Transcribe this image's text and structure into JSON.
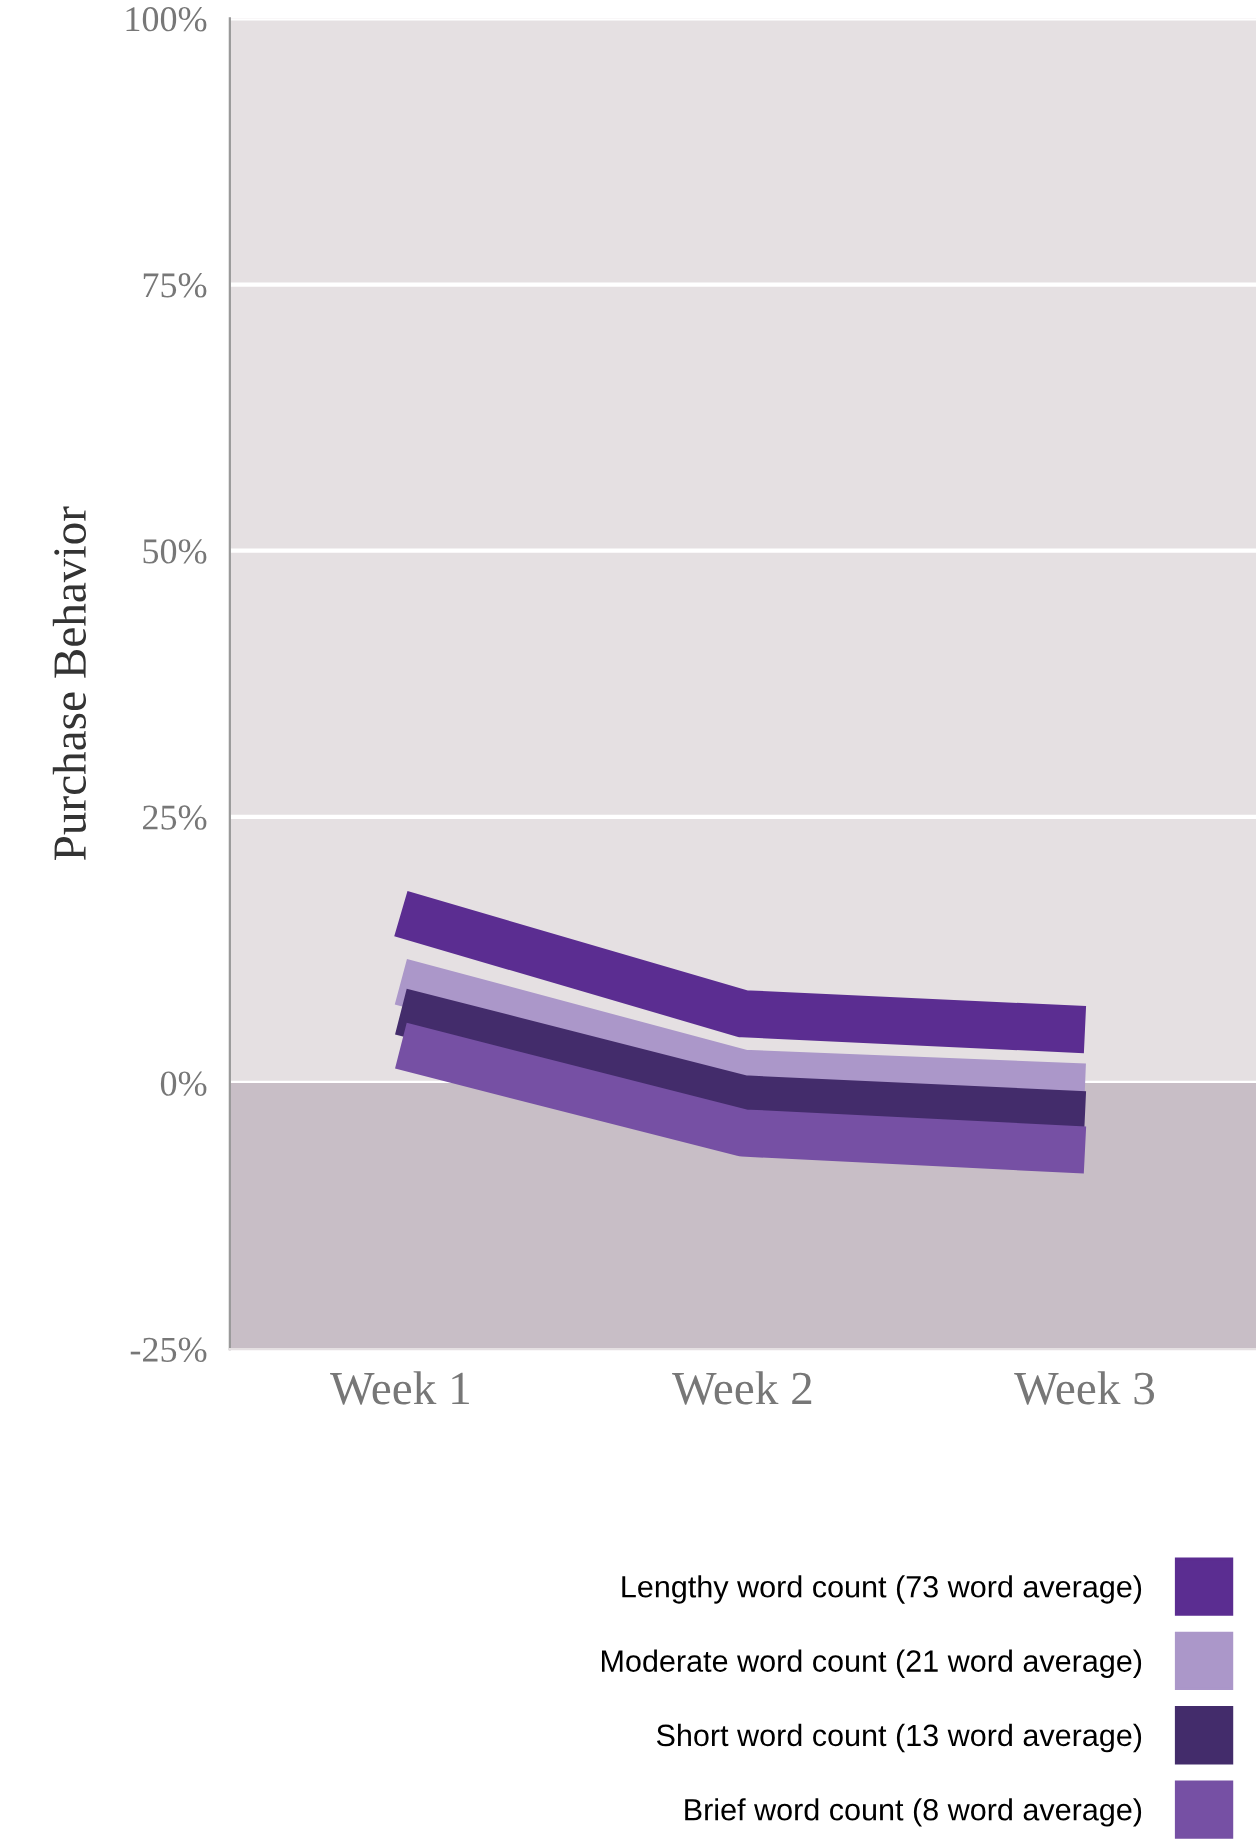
{
  "chart_data": {
    "type": "line",
    "ylabel": "Purchase Behavior",
    "categories": [
      "Week 1",
      "Week 2",
      "Week 3"
    ],
    "ylim": [
      -25,
      100
    ],
    "yticks": [
      {
        "value": -25,
        "label": "-25%"
      },
      {
        "value": 0,
        "label": "0%"
      },
      {
        "value": 25,
        "label": "25%"
      },
      {
        "value": 50,
        "label": "50%"
      },
      {
        "value": 75,
        "label": "75%"
      },
      {
        "value": 100,
        "label": "100%"
      }
    ],
    "grid": "y",
    "legend": "bottom",
    "marker": "none",
    "line_style": "solid",
    "bands": [
      {
        "axis": "y",
        "from": -25,
        "to": 0,
        "color": "#c8bec6"
      }
    ],
    "series": [
      {
        "name": "Lengthy word count (73 word average)",
        "color": "#5b2d91",
        "values": [
          15.9,
          6.5,
          5.0
        ]
      },
      {
        "name": "Moderate word count (21 word average)",
        "color": "#ab97c9",
        "values": [
          9.5,
          0.9,
          -0.4
        ]
      },
      {
        "name": "Short word count (13 word average)",
        "color": "#432c6b",
        "values": [
          6.7,
          -1.5,
          -3.0
        ]
      },
      {
        "name": "Brief word count (8 word average)",
        "color": "#7650a4",
        "values": [
          3.5,
          -4.7,
          -6.3
        ]
      }
    ]
  }
}
